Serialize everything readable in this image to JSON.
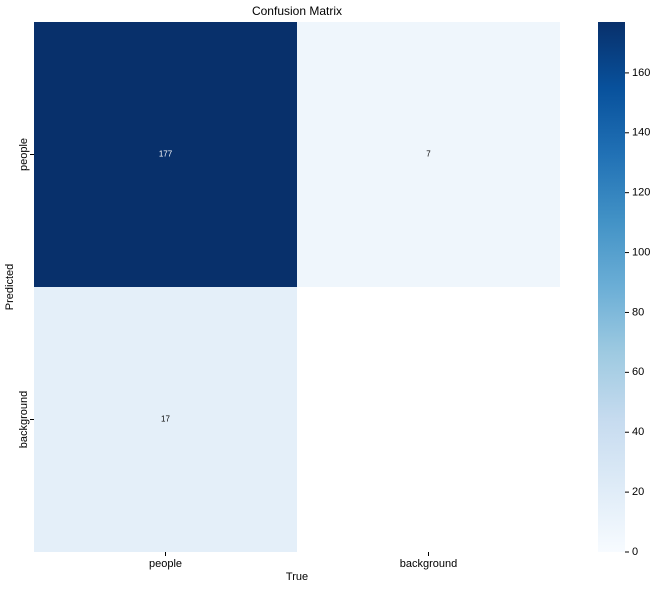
{
  "chart_data": {
    "type": "heatmap",
    "title": "Confusion Matrix",
    "x_label": "True",
    "y_label": "Predicted",
    "x_categories": [
      "people",
      "background"
    ],
    "y_categories": [
      "people",
      "background"
    ],
    "values": [
      [
        177,
        7
      ],
      [
        17,
        null
      ]
    ],
    "colormap": "Blues",
    "clim": [
      0,
      177
    ],
    "cticks": [
      0,
      20,
      40,
      60,
      80,
      100,
      120,
      140,
      160
    ]
  }
}
